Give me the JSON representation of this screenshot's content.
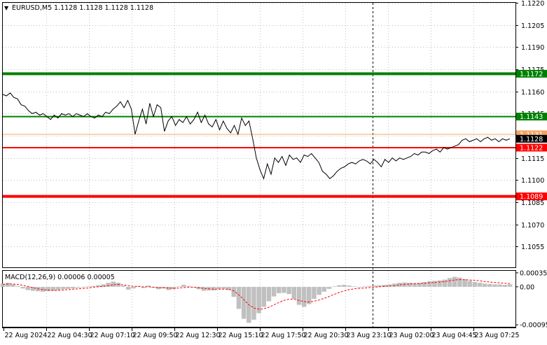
{
  "header": {
    "symbol_label": "EURUSD,M5",
    "ohlc_text": "1.1128 1.1128 1.1128 1.1128"
  },
  "macd": {
    "label": "MACD(12,26,9) 0.00006 0.00005"
  },
  "colors": {
    "price_line": "#000000",
    "resistance_green": "#008000",
    "support_red": "#ff0000",
    "level_orange": "#f4a460",
    "histogram": "#c0c0c0",
    "signal_line": "#ff0000",
    "grid": "#c0c0c0",
    "axis": "#000000",
    "background": "#ffffff"
  },
  "chart_data": [
    {
      "type": "line",
      "title": "EURUSD,M5",
      "xlabel": "",
      "ylabel": "",
      "ylim": [
        1.1041,
        1.122
      ],
      "grid": true,
      "x_ticks": [
        "22 Aug 2024",
        "22 Aug 04:30",
        "22 Aug 07:10",
        "22 Aug 09:50",
        "22 Aug 12:30",
        "22 Aug 15:10",
        "22 Aug 17:50",
        "22 Aug 20:30",
        "23 Aug 23:10",
        "23 Aug 02:00",
        "23 Aug 04:45",
        "23 Aug 07:25"
      ],
      "y_ticks": [
        "1.1220",
        "1.1205",
        "1.1190",
        "1.1175",
        "1.1160",
        "1.1145",
        "1.1130",
        "1.1115",
        "1.1100",
        "1.1085",
        "1.1070",
        "1.1055"
      ],
      "levels": [
        {
          "value": 1.1172,
          "label": "1.1172",
          "color": "#008000",
          "kind": "resistance-thick"
        },
        {
          "value": 1.1143,
          "label": "1.1143",
          "color": "#008000",
          "kind": "resistance"
        },
        {
          "value": 1.1131,
          "label": "1.1131",
          "color": "#f4a460",
          "kind": "thin"
        },
        {
          "value": 1.1128,
          "label": "1.1128",
          "color": "#000000",
          "kind": "current-price"
        },
        {
          "value": 1.1122,
          "label": "1.1122",
          "color": "#ff0000",
          "kind": "support"
        },
        {
          "value": 1.1089,
          "label": "1.1089",
          "color": "#ff0000",
          "kind": "support-thick"
        }
      ],
      "series": [
        {
          "values": [
            1.1158,
            1.1157,
            1.1159,
            1.1156,
            1.1155,
            1.1151,
            1.115,
            1.1147,
            1.1145,
            1.1146,
            1.1144,
            1.1145,
            1.1143,
            1.1141,
            1.1144,
            1.1142,
            1.1145,
            1.1144,
            1.1145,
            1.1143,
            1.1145,
            1.1144,
            1.1143,
            1.1145,
            1.1143,
            1.1142,
            1.1144,
            1.1143,
            1.1146,
            1.1145,
            1.1148,
            1.115,
            1.1153,
            1.1149,
            1.1154,
            1.1148,
            1.1131,
            1.114,
            1.1148,
            1.1138,
            1.1152,
            1.1143,
            1.1151,
            1.1149,
            1.1133,
            1.114,
            1.1143,
            1.1137,
            1.1141,
            1.1139,
            1.1143,
            1.1138,
            1.1141,
            1.1146,
            1.1139,
            1.1144,
            1.1138,
            1.1136,
            1.1141,
            1.1134,
            1.114,
            1.1135,
            1.1132,
            1.1137,
            1.1131,
            1.1142,
            1.1137,
            1.114,
            1.1128,
            1.1115,
            1.1107,
            1.1101,
            1.1111,
            1.1104,
            1.1115,
            1.1112,
            1.1116,
            1.111,
            1.1117,
            1.1114,
            1.1115,
            1.1112,
            1.1117,
            1.1116,
            1.1118,
            1.1115,
            1.1112,
            1.1106,
            1.1104,
            1.1101,
            1.1103,
            1.1106,
            1.1108,
            1.1109,
            1.1111,
            1.1112,
            1.1111,
            1.1113,
            1.1114,
            1.1113,
            1.1111,
            1.1114,
            1.1112,
            1.1109,
            1.1114,
            1.1112,
            1.1115,
            1.1113,
            1.1115,
            1.1114,
            1.1115,
            1.1116,
            1.1118,
            1.1117,
            1.1119,
            1.1119,
            1.1118,
            1.112,
            1.1121,
            1.1119,
            1.1122,
            1.1121,
            1.1122,
            1.1123,
            1.1124,
            1.1127,
            1.1128,
            1.1126,
            1.1127,
            1.1128,
            1.1126,
            1.1128,
            1.1129,
            1.1127,
            1.1128,
            1.1126,
            1.1128,
            1.1127,
            1.1128
          ]
        }
      ]
    },
    {
      "type": "bar",
      "title": "MACD(12,26,9) 0.00006 0.00005",
      "xlabel": "",
      "ylabel": "",
      "ylim": [
        -0.001,
        0.0004
      ],
      "y_ticks": [
        "0.00035",
        "0.00",
        "-0.00095"
      ],
      "series": [
        {
          "kind": "histogram",
          "values": [
            8e-05,
            0.0001,
            6e-05,
            2e-05,
            -4e-05,
            -8e-05,
            -0.0001,
            -0.00011,
            -0.00012,
            -0.00011,
            -0.0001,
            -8e-05,
            -6e-05,
            -5e-05,
            -4e-05,
            -2e-05,
            -1e-05,
            1e-05,
            2e-05,
            4e-05,
            6e-05,
            0.0001,
            0.00013,
            0.0001,
            3e-05,
            -7e-05,
            -4e-05,
            2e-05,
            -3e-05,
            3e-05,
            -2e-05,
            -6e-05,
            -4e-05,
            -8e-05,
            -6e-05,
            1e-05,
            5e-05,
            2e-05,
            -1e-05,
            -6e-05,
            -0.0001,
            -9e-05,
            -9e-05,
            -6e-05,
            -5e-05,
            -8e-05,
            -0.00025,
            -0.00055,
            -0.0008,
            -0.0009,
            -0.00082,
            -0.00066,
            -0.0005,
            -0.00036,
            -0.00024,
            -0.00016,
            -0.00015,
            -0.00018,
            -0.0003,
            -0.00045,
            -0.0005,
            -0.00043,
            -0.0003,
            -0.0002,
            -0.00012,
            -5e-05,
            1e-05,
            4e-05,
            5e-05,
            3e-05,
            1e-05,
            0.0,
            1e-05,
            2e-05,
            3e-05,
            4e-05,
            5e-05,
            6e-05,
            8e-05,
            0.0001,
            0.00011,
            0.0001,
            9e-05,
            0.0001,
            0.00012,
            0.00014,
            0.00015,
            0.00016,
            0.00018,
            0.00022,
            0.00025,
            0.00023,
            0.00019,
            0.00015,
            0.00012,
            0.0001,
            8e-05,
            7e-05,
            6e-05,
            6e-05,
            5e-05,
            6e-05
          ]
        },
        {
          "kind": "signal-line",
          "values": [
            6e-05,
            7e-05,
            7e-05,
            6e-05,
            4e-05,
            1e-05,
            -2e-05,
            -5e-05,
            -7e-05,
            -8e-05,
            -9e-05,
            -9e-05,
            -8e-05,
            -7e-05,
            -6e-05,
            -5e-05,
            -4e-05,
            -3e-05,
            -1e-05,
            0.0,
            1e-05,
            3e-05,
            5e-05,
            6e-05,
            5e-05,
            3e-05,
            1e-05,
            1e-05,
            0.0,
            0.0,
            -1e-05,
            -2e-05,
            -2e-05,
            -3e-05,
            -4e-05,
            -3e-05,
            -2e-05,
            -1e-05,
            -1e-05,
            -2e-05,
            -4e-05,
            -5e-05,
            -6e-05,
            -6e-05,
            -6e-05,
            -6e-05,
            -0.0001,
            -0.0002,
            -0.00032,
            -0.00045,
            -0.00053,
            -0.00056,
            -0.00055,
            -0.00051,
            -0.00045,
            -0.00039,
            -0.00034,
            -0.00031,
            -0.00031,
            -0.00034,
            -0.00037,
            -0.00038,
            -0.00036,
            -0.00033,
            -0.00029,
            -0.00024,
            -0.00019,
            -0.00014,
            -0.0001,
            -7e-05,
            -5e-05,
            -4e-05,
            -3e-05,
            -2e-05,
            -1e-05,
            0.0,
            1e-05,
            2e-05,
            3e-05,
            5e-05,
            6e-05,
            7e-05,
            8e-05,
            8e-05,
            9e-05,
            0.0001,
            0.00011,
            0.00012,
            0.00013,
            0.00015,
            0.00017,
            0.00018,
            0.00018,
            0.00017,
            0.00016,
            0.00015,
            0.00013,
            0.00012,
            0.00011,
            0.0001,
            9e-05,
            8e-05
          ]
        }
      ]
    }
  ]
}
